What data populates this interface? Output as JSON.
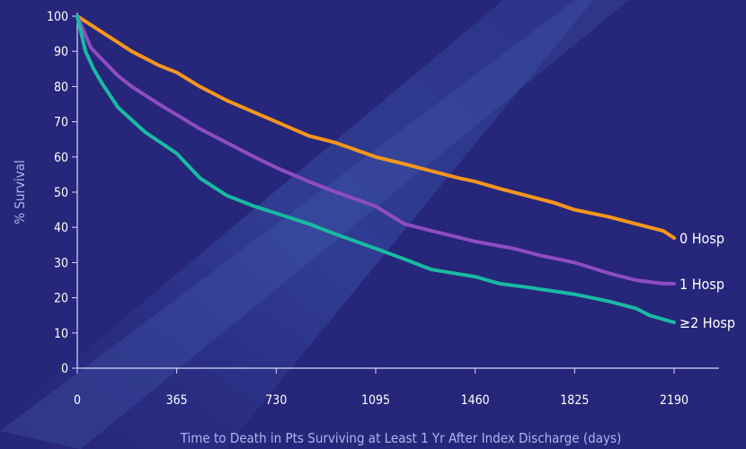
{
  "chart_data": {
    "type": "line",
    "title": "",
    "xlabel": "Time to Death in Pts Surviving at Least 1 Yr After Index Discharge (days)",
    "ylabel": "% Survival",
    "xlim": [
      0,
      2190
    ],
    "ylim": [
      0,
      100
    ],
    "x_ticks": [
      "0",
      "365",
      "730",
      "1095",
      "1460",
      "1825",
      "2190"
    ],
    "y_ticks": [
      "0",
      "10",
      "20",
      "30",
      "40",
      "50",
      "60",
      "70",
      "80",
      "90",
      "100"
    ],
    "grid": false,
    "legend": "inline labels at right end of each line",
    "series": [
      {
        "name": "0 Hosp",
        "color": "#f5961e",
        "x": [
          0,
          100,
          200,
          300,
          365,
          450,
          550,
          640,
          730,
          850,
          950,
          1095,
          1200,
          1300,
          1400,
          1460,
          1550,
          1650,
          1750,
          1825,
          1950,
          2050,
          2150,
          2190
        ],
        "y": [
          100,
          95,
          90,
          86,
          84,
          80,
          76,
          73,
          70,
          66,
          64,
          60,
          58,
          56,
          54,
          53,
          51,
          49,
          47,
          45,
          43,
          41,
          39,
          37
        ]
      },
      {
        "name": "1 Hosp",
        "color": "#8e4dc2",
        "x": [
          0,
          50,
          100,
          150,
          200,
          300,
          365,
          450,
          550,
          650,
          730,
          850,
          950,
          1095,
          1200,
          1300,
          1460,
          1600,
          1700,
          1825,
          1950,
          2050,
          2150,
          2190
        ],
        "y": [
          100,
          91,
          87,
          83,
          80,
          75,
          72,
          68,
          64,
          60,
          57,
          53,
          50,
          46,
          41,
          39,
          36,
          34,
          32,
          30,
          27,
          25,
          24,
          24
        ]
      },
      {
        "name": "≥2 Hosp",
        "color": "#19b9a3",
        "x": [
          0,
          30,
          60,
          90,
          150,
          250,
          365,
          450,
          550,
          650,
          730,
          850,
          950,
          1095,
          1200,
          1300,
          1460,
          1550,
          1650,
          1825,
          1950,
          2050,
          2100,
          2190
        ],
        "y": [
          100,
          90,
          85,
          81,
          74,
          67,
          61,
          54,
          49,
          46,
          44,
          41,
          38,
          34,
          31,
          28,
          26,
          24,
          23,
          21,
          19,
          17,
          15,
          13
        ]
      }
    ]
  }
}
